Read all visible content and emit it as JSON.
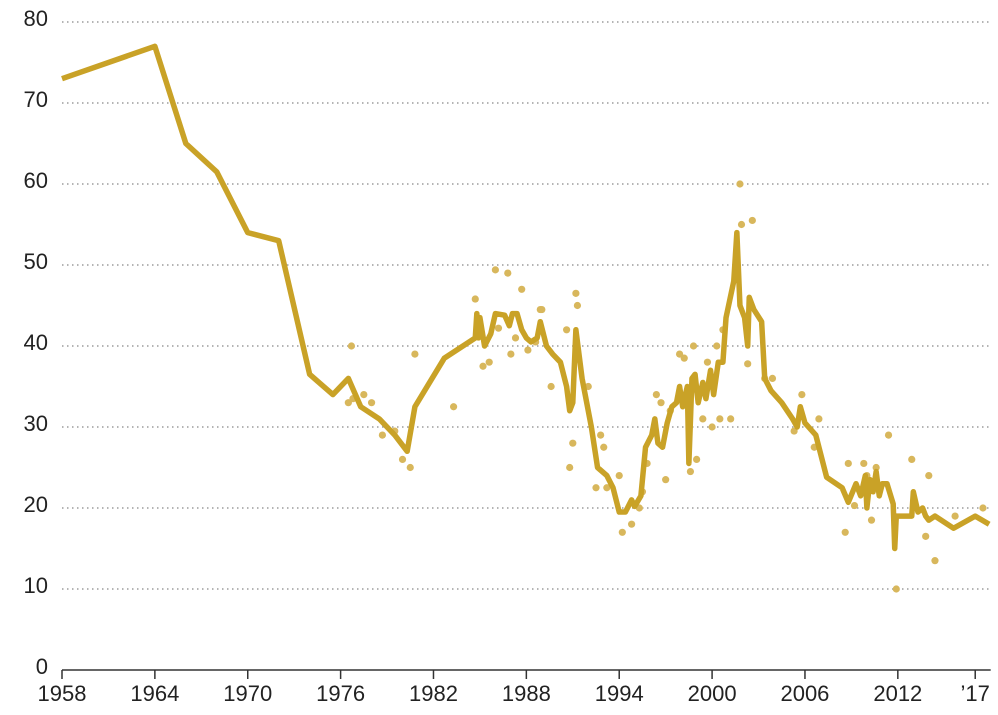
{
  "chart_data": {
    "type": "line",
    "xlim": [
      1958,
      2018
    ],
    "xticks": [
      1958,
      1964,
      1970,
      1976,
      1982,
      1988,
      1994,
      2000,
      2006,
      2012,
      {
        "value": 2017,
        "label": "’17"
      }
    ],
    "ylim": [
      0,
      80
    ],
    "yticks": [
      0,
      10,
      20,
      30,
      40,
      50,
      60,
      70,
      80
    ],
    "grid": true,
    "line": {
      "color": "#c9a227",
      "x": [
        1958,
        1964,
        1966,
        1968,
        1970,
        1972,
        1974,
        1975.5,
        1976.5,
        1977.3,
        1978.5,
        1979.5,
        1980.3,
        1980.8,
        1982.7,
        1984.7,
        1984.8,
        1984.9,
        1985,
        1985.3,
        1985.7,
        1986,
        1986.6,
        1986.9,
        1987.1,
        1987.4,
        1987.7,
        1988,
        1988.3,
        1988.7,
        1988.9,
        1989.3,
        1989.7,
        1990.2,
        1990.6,
        1990.8,
        1991,
        1991.2,
        1991.6,
        1992.2,
        1992.6,
        1993.2,
        1993.6,
        1994,
        1994.4,
        1994.8,
        1995,
        1995.4,
        1995.7,
        1996.1,
        1996.3,
        1996.5,
        1996.8,
        1997.1,
        1997.4,
        1997.7,
        1997.9,
        1998.1,
        1998.4,
        1998.5,
        1998.7,
        1998.9,
        1999.1,
        1999.4,
        1999.6,
        1999.9,
        2000.1,
        2000.4,
        2000.7,
        2000.9,
        2001.4,
        2001.6,
        2001.8,
        2002.1,
        2002.3,
        2002.4,
        2002.7,
        2003.2,
        2003.4,
        2003.8,
        2004.5,
        2005.2,
        2005.5,
        2005.7,
        2006,
        2006.7,
        2007.4,
        2008.4,
        2008.8,
        2009.3,
        2009.6,
        2009.9,
        2010,
        2010.2,
        2010.4,
        2010.6,
        2010.8,
        2011,
        2011.3,
        2011.7,
        2011.8,
        2011.9,
        2012.3,
        2012.9,
        2013,
        2013.3,
        2013.6,
        2013.8,
        2014,
        2014.4,
        2015.6,
        2017,
        2017.9
      ],
      "values": [
        73,
        77,
        65,
        61.5,
        54,
        53,
        36.5,
        34,
        36,
        32.5,
        31,
        29,
        27,
        32.5,
        38.5,
        41,
        44,
        41,
        43.5,
        40,
        41.5,
        44,
        43.8,
        42.5,
        44,
        44,
        42,
        41,
        40.5,
        41,
        43,
        40,
        39,
        38,
        35,
        32,
        33,
        42,
        36,
        30,
        25,
        24,
        22.5,
        19.5,
        19.5,
        21,
        20.2,
        21.5,
        27.5,
        29,
        31,
        28,
        27.5,
        30.5,
        32.5,
        33,
        35,
        32.5,
        35,
        25.5,
        36,
        36.5,
        33,
        35.5,
        33.5,
        37,
        34,
        38,
        38,
        43.5,
        48,
        54,
        45,
        43.5,
        40,
        46,
        44.5,
        43,
        36,
        34.5,
        33,
        31,
        30,
        32.5,
        30.5,
        29,
        23.8,
        22.5,
        20.7,
        23,
        21.5,
        24,
        20,
        23.5,
        22,
        24.5,
        21.5,
        23,
        23,
        20.5,
        15,
        19,
        19,
        19,
        22,
        19.5,
        20,
        19,
        18.5,
        19,
        17.5,
        19,
        18
      ]
    },
    "points": {
      "color": "#d8b75c",
      "x": [
        1976.5,
        1976.7,
        1976.8,
        1977.5,
        1978,
        1978.7,
        1979.5,
        1980,
        1980.5,
        1980.8,
        1983.3,
        1984.7,
        1985.2,
        1985.6,
        1986,
        1986.2,
        1986.8,
        1987,
        1987.3,
        1987.7,
        1988.1,
        1988.6,
        1988.9,
        1989,
        1989.6,
        1990.6,
        1990.8,
        1991,
        1991.2,
        1991.3,
        1992,
        1992.5,
        1992.8,
        1993,
        1993.2,
        1994,
        1994.2,
        1994.8,
        1995.3,
        1995.5,
        1995.8,
        1996.4,
        1996.7,
        1997,
        1997.3,
        1997.9,
        1998.2,
        1998.6,
        1998.8,
        1999,
        1999.4,
        1999.7,
        2000,
        2000.3,
        2000.5,
        2000.7,
        2001.2,
        2001.8,
        2001.9,
        2002.3,
        2002.6,
        2003.4,
        2003.9,
        2005.3,
        2005.8,
        2006.6,
        2006.9,
        2008.6,
        2008.8,
        2009.2,
        2009.8,
        2010,
        2010.3,
        2010.6,
        2011.4,
        2011.9,
        2012.9,
        2013.8,
        2014,
        2014.4,
        2015.7,
        2017.5
      ],
      "values": [
        33,
        40,
        33.5,
        34,
        33,
        29,
        29.5,
        26,
        25,
        39,
        32.5,
        45.8,
        37.5,
        38,
        49.4,
        42.2,
        49,
        39,
        41,
        47,
        39.5,
        40.5,
        44.5,
        44.5,
        35,
        42,
        25,
        28,
        46.5,
        45,
        35,
        22.5,
        29,
        27.5,
        22.5,
        24,
        17,
        18,
        20,
        22,
        25.5,
        34,
        33,
        23.5,
        32,
        39,
        38.5,
        24.5,
        40,
        26,
        31,
        38,
        30,
        40,
        31,
        42,
        31,
        60,
        55,
        37.8,
        55.5,
        36,
        36,
        29.5,
        34,
        27.5,
        31,
        17,
        25.5,
        20.3,
        25.5,
        24,
        18.5,
        25,
        29,
        10,
        26,
        16.5,
        24,
        13.5,
        19,
        20
      ]
    }
  }
}
